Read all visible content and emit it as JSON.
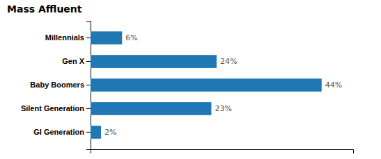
{
  "chart_data": {
    "type": "bar",
    "title": "Mass Affluent",
    "orientation": "horizontal",
    "categories": [
      "Millennials",
      "Gen X",
      "Baby Boomers",
      "Silent Generation",
      "GI Generation"
    ],
    "values": [
      6,
      24,
      44,
      23,
      2
    ],
    "value_labels": [
      "6%",
      "24%",
      "44%",
      "23%",
      "2%"
    ],
    "xlim": [
      0,
      50
    ],
    "data_labels": true,
    "tick_labels": "y",
    "grid": false
  }
}
